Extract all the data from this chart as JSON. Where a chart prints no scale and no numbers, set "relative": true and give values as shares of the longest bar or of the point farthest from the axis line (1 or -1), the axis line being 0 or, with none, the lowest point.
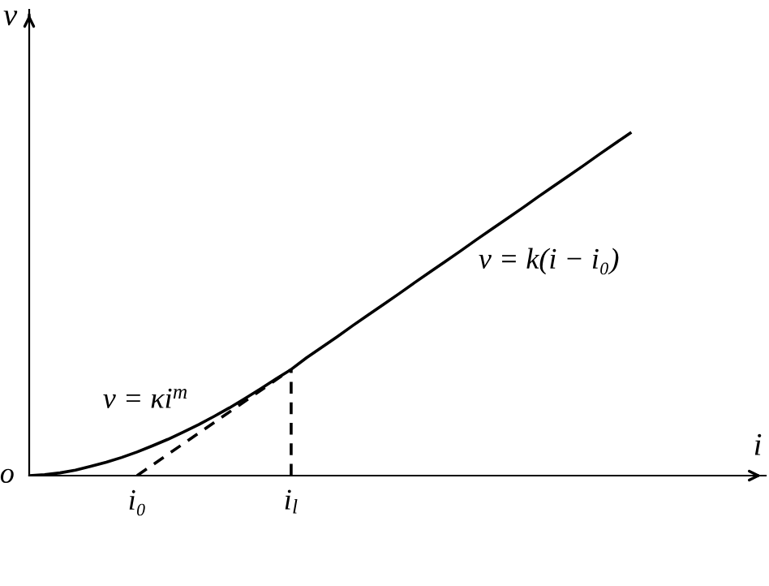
{
  "chart_data": {
    "type": "line",
    "relative": true,
    "xlabel": "i",
    "ylabel": "v",
    "categories": [
      null,
      null,
      null,
      null,
      null,
      null,
      null,
      "i₀",
      null,
      null,
      null,
      null,
      null,
      null,
      null,
      null,
      null,
      "i$_{l}$",
      null,
      null,
      null,
      null,
      null,
      null,
      null,
      null,
      null,
      null,
      null,
      null,
      null,
      null,
      null,
      null,
      null,
      null,
      null,
      null,
      null,
      null,
      null,
      null,
      null,
      null,
      null,
      null,
      null,
      null
    ],
    "series": [
      {
        "color": "#000000",
        "line_style": "solid",
        "values": [
          0,
          0.003,
          0.008,
          0.016,
          0.027,
          0.039,
          0.053,
          0.069,
          0.087,
          0.106,
          0.127,
          0.149,
          0.173,
          0.198,
          0.225,
          0.253,
          0.282,
          0.31,
          0.344,
          0.375,
          0.406,
          0.438,
          0.469,
          0.5,
          0.531,
          0.563,
          0.594,
          0.625,
          0.656,
          0.688,
          0.719,
          0.75,
          0.781,
          0.813,
          0.844,
          0.875,
          0.906,
          0.938,
          0.969,
          1,
          null,
          null,
          null,
          null,
          null,
          null,
          null,
          null
        ]
      },
      {
        "color": "#000000",
        "line_style": "dashed",
        "x": [
          "i₀",
          "i$_{l}$"
        ],
        "values": [
          0,
          0.31
        ]
      },
      {
        "color": "#000000",
        "line_style": "dashed",
        "x": [
          "i$_{l}$",
          "i$_{l}$"
        ],
        "values": [
          0,
          0.31
        ]
      }
    ],
    "annotations": [
      "v = k(i − i₀)",
      "v = κi$^{m}$",
      "o"
    ],
    "grid": false,
    "legend": false
  }
}
